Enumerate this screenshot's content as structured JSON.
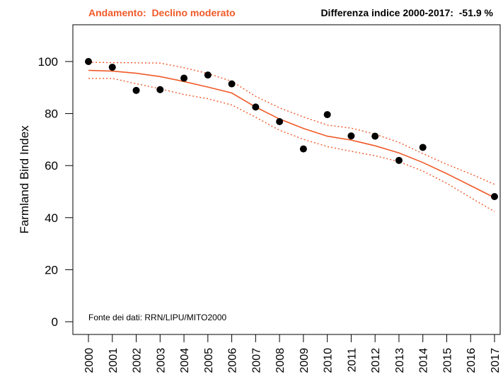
{
  "header": {
    "trend_text": "Andamento:  Declino moderato",
    "difference_text": "Differenza indice 2000-2017:  -51.9 %"
  },
  "source_note": "Fonte dei dati: RRN/LIPU/MITO2000",
  "colors": {
    "accent": "#f05a28",
    "points": "#000000",
    "axis": "#000000"
  },
  "chart_data": {
    "type": "scatter",
    "title": "",
    "xlabel": "",
    "ylabel": "Farmland Bird Index",
    "xlim": [
      2000,
      2017
    ],
    "ylim": [
      -5,
      113
    ],
    "y_ticks": [
      0,
      20,
      40,
      60,
      80,
      100
    ],
    "x_ticks": [
      2000,
      2001,
      2002,
      2003,
      2004,
      2005,
      2006,
      2007,
      2008,
      2009,
      2010,
      2011,
      2012,
      2013,
      2014,
      2015,
      2016,
      2017
    ],
    "grid": false,
    "series": [
      {
        "kind": "points",
        "x": [
          2000,
          2001,
          2002,
          2003,
          2004,
          2005,
          2006,
          2007,
          2008,
          2009,
          2010,
          2011,
          2012,
          2013,
          2014,
          2017
        ],
        "y": [
          100,
          97.8,
          88.9,
          89.2,
          93.6,
          94.8,
          91.4,
          82.5,
          76.9,
          66.4,
          79.6,
          71.4,
          71.3,
          62.0,
          67.0,
          48.1
        ]
      },
      {
        "kind": "trend",
        "x": [
          2000,
          2001,
          2002,
          2003,
          2004,
          2005,
          2006,
          2007,
          2008,
          2009,
          2010,
          2011,
          2012,
          2013,
          2014,
          2015,
          2016,
          2017
        ],
        "y": [
          96.6,
          96.3,
          95.5,
          94.2,
          92.3,
          90.2,
          87.9,
          82.5,
          77.9,
          74.3,
          71.3,
          69.8,
          67.6,
          64.9,
          61.2,
          56.9,
          52.3,
          47.7
        ]
      },
      {
        "kind": "upper",
        "x": [
          2000,
          2001,
          2002,
          2003,
          2004,
          2005,
          2006,
          2007,
          2008,
          2009,
          2010,
          2011,
          2012,
          2013,
          2014,
          2015,
          2016,
          2017
        ],
        "y": [
          99.7,
          99.6,
          99.5,
          99.4,
          97.6,
          95.4,
          92.4,
          86.6,
          82.2,
          78.7,
          75.6,
          74.4,
          72.1,
          68.9,
          64.6,
          60.5,
          56.8,
          52.8
        ]
      },
      {
        "kind": "lower",
        "x": [
          2000,
          2001,
          2002,
          2003,
          2004,
          2005,
          2006,
          2007,
          2008,
          2009,
          2010,
          2011,
          2012,
          2013,
          2014,
          2015,
          2016,
          2017
        ],
        "y": [
          93.5,
          93.5,
          91.5,
          89.5,
          87.3,
          85.7,
          83.3,
          78.6,
          73.6,
          70.1,
          67.3,
          65.5,
          63.8,
          61.5,
          57.9,
          53.2,
          47.7,
          42.3
        ]
      }
    ]
  }
}
